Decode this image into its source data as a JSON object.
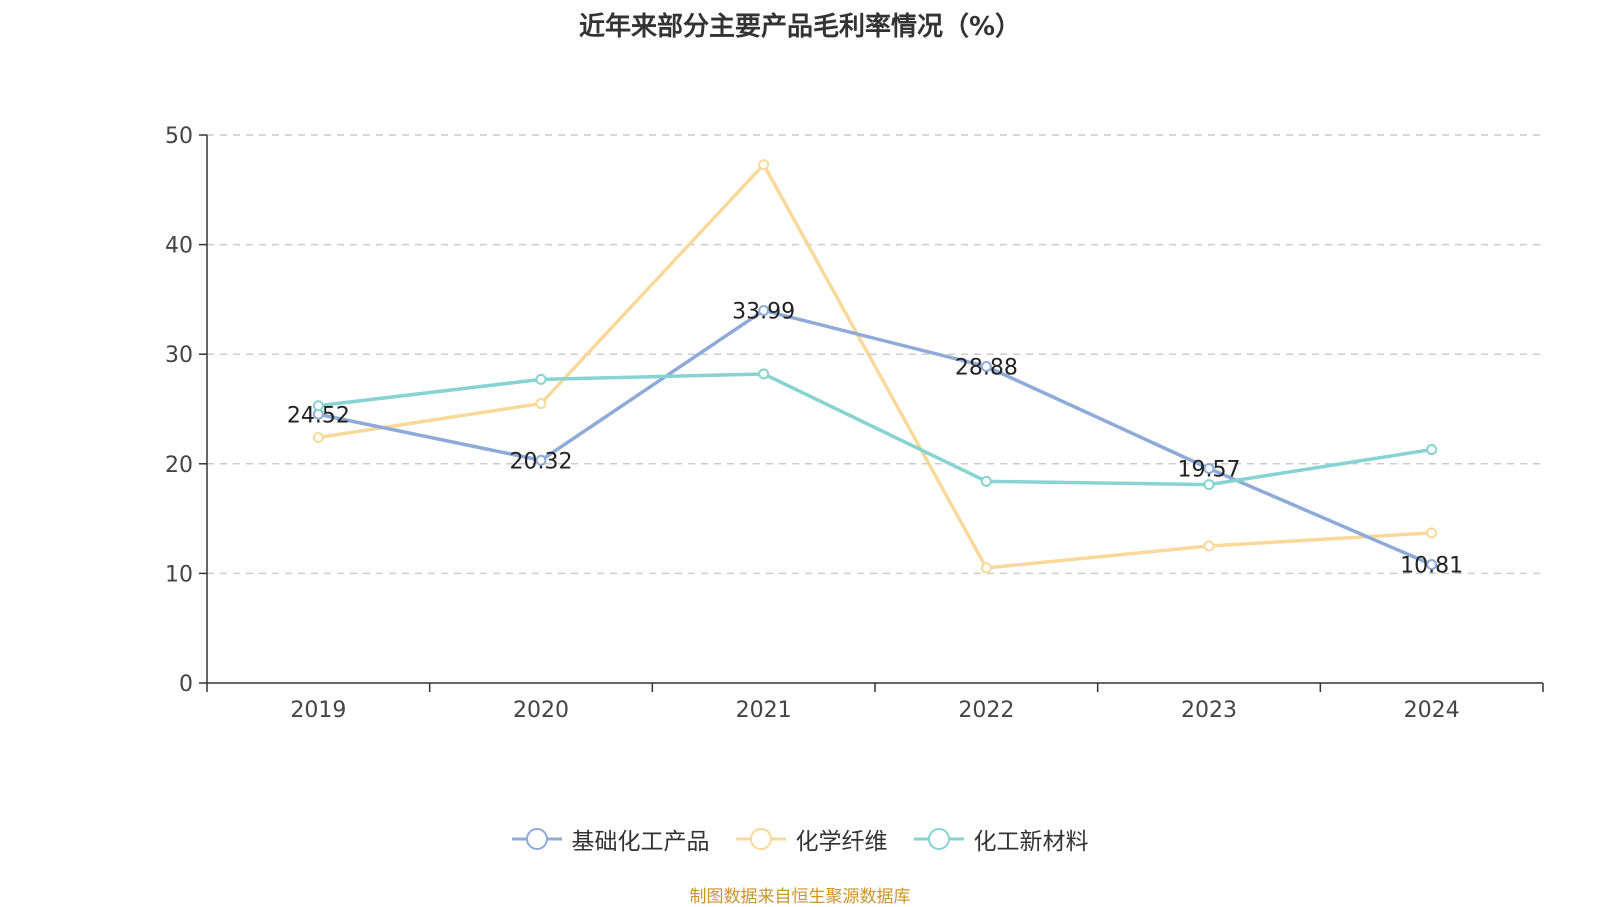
{
  "chart_data": {
    "type": "line",
    "title": "近年来部分主要产品毛利率情况（%）",
    "categories": [
      "2019",
      "2020",
      "2021",
      "2022",
      "2023",
      "2024"
    ],
    "ylim": [
      0,
      50
    ],
    "yticks": [
      0,
      10,
      20,
      30,
      40,
      50
    ],
    "grid": true,
    "legend_position": "bottom",
    "series": [
      {
        "name": "基础化工产品",
        "color": "#8eaad8",
        "values": [
          24.52,
          20.32,
          33.99,
          28.88,
          19.57,
          10.81
        ],
        "labels": [
          "24.52",
          "20.32",
          "33.99",
          "28.88",
          "19.57",
          "10.81"
        ]
      },
      {
        "name": "化学纤维",
        "color": "#f9d99a",
        "values": [
          22.4,
          25.5,
          47.3,
          10.5,
          12.5,
          13.7
        ]
      },
      {
        "name": "化工新材料",
        "color": "#86d3d2",
        "values": [
          25.3,
          27.7,
          28.2,
          18.4,
          18.1,
          21.3
        ]
      }
    ]
  },
  "source": "制图数据来自恒生聚源数据库"
}
